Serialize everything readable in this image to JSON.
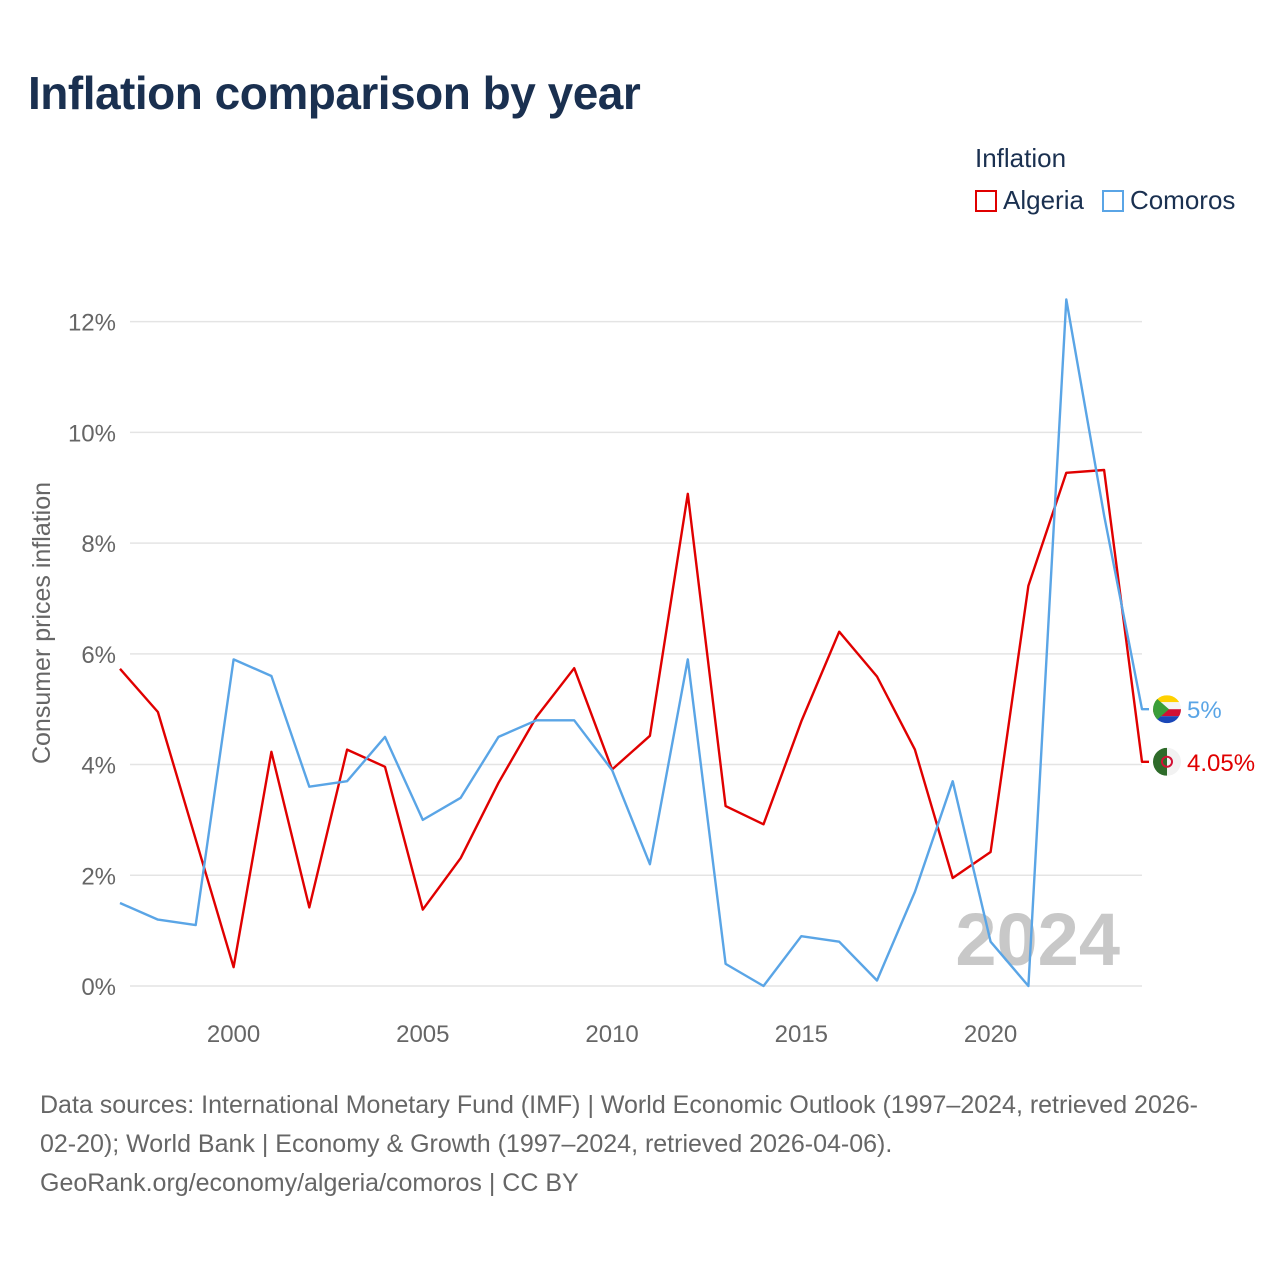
{
  "title": "Inflation comparison by year",
  "legend_title": "Inflation",
  "colors": {
    "Algeria": "#e00000",
    "Comoros": "#5aa5e6",
    "grid": "#e4e4e4",
    "axis_text": "#666666",
    "watermark": "#c8c8c8"
  },
  "chart_data": {
    "type": "line",
    "ylabel": "Consumer prices inflation",
    "xlabel": "",
    "xlim": [
      1997,
      2024
    ],
    "ylim": [
      0,
      12.5
    ],
    "yticks": [
      0,
      2,
      4,
      6,
      8,
      10,
      12
    ],
    "ytick_labels": [
      "0%",
      "2%",
      "4%",
      "6%",
      "8%",
      "10%",
      "12%"
    ],
    "xticks": [
      2000,
      2005,
      2010,
      2015,
      2020
    ],
    "xtick_labels": [
      "2000",
      "2005",
      "2010",
      "2015",
      "2020"
    ],
    "x": [
      1997,
      1998,
      1999,
      2000,
      2001,
      2002,
      2003,
      2004,
      2005,
      2006,
      2007,
      2008,
      2009,
      2010,
      2011,
      2012,
      2013,
      2014,
      2015,
      2016,
      2017,
      2018,
      2019,
      2020,
      2021,
      2022,
      2023,
      2024
    ],
    "series": [
      {
        "name": "Algeria",
        "end_label": "4.05%",
        "values": [
          5.73,
          4.95,
          2.65,
          0.34,
          4.23,
          1.42,
          4.27,
          3.96,
          1.38,
          2.31,
          3.67,
          4.86,
          5.74,
          3.91,
          4.52,
          8.89,
          3.25,
          2.92,
          4.78,
          6.4,
          5.59,
          4.27,
          1.95,
          2.42,
          7.23,
          9.27,
          9.32,
          4.05
        ]
      },
      {
        "name": "Comoros",
        "end_label": "5%",
        "values": [
          1.5,
          1.2,
          1.1,
          5.9,
          5.6,
          3.6,
          3.7,
          4.5,
          3.0,
          3.4,
          4.5,
          4.8,
          4.8,
          3.9,
          2.2,
          5.9,
          0.4,
          0.0,
          0.9,
          0.8,
          0.1,
          1.7,
          3.7,
          0.8,
          0.0,
          12.4,
          8.5,
          5.0
        ]
      }
    ],
    "watermark": "2024",
    "grid": true
  },
  "footer": {
    "line1": "Data sources: International Monetary Fund (IMF) | World Economic Outlook (1997–2024, retrieved 2026-",
    "line2": "02-20); World Bank | Economy & Growth (1997–2024, retrieved 2026-04-06).",
    "line3": "GeoRank.org/economy/algeria/comoros | CC BY"
  }
}
